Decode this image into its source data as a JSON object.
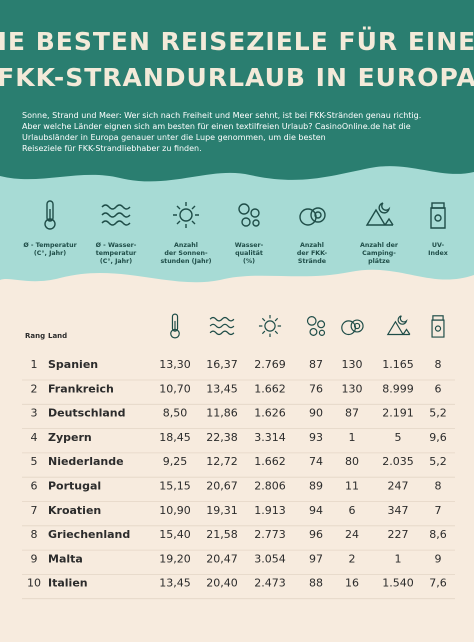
{
  "header": {
    "title": [
      "DIE BESTEN REISEZIELE FÜR EINEN",
      "FKK-STRANDURLAUB IN EUROPA"
    ],
    "description": [
      "Sonne, Strand und Meer: Wer sich nach Freiheit und Meer sehnt, ist bei FKK-Stränden genau richtig.",
      "Aber welche Länder eignen sich am besten für einen textilfreien Urlaub? CasinoOnline.de hat die",
      "Urlaubsländer in Europa genauer unter die Lupe genommen, um die besten",
      "Reiseziele für FKK-Strandliebhaber zu finden."
    ]
  },
  "legend": [
    {
      "lines": [
        "Ø - Temperatur",
        "(C°, Jahr)"
      ]
    },
    {
      "lines": [
        "Ø - Wasser-",
        "temperatur",
        "(C°, Jahr)"
      ]
    },
    {
      "lines": [
        "Anzahl",
        "der Sonnen-",
        "stunden (Jahr)"
      ]
    },
    {
      "lines": [
        "Wasser-",
        "qualität",
        "(%)"
      ]
    },
    {
      "lines": [
        "Anzahl",
        "der FKK-",
        "Strände"
      ]
    },
    {
      "lines": [
        "Anzahl der",
        "Camping-",
        "plätze"
      ]
    },
    {
      "lines": [
        "UV-",
        "Index"
      ]
    }
  ],
  "table": {
    "header": [
      "Rang",
      "Land"
    ],
    "rows": [
      [
        1,
        "Spanien",
        "13,30",
        "16,37",
        "2.769",
        "87",
        "130",
        "1.165",
        "8"
      ],
      [
        2,
        "Frankreich",
        "10,70",
        "13,45",
        "1.662",
        "76",
        "130",
        "8.999",
        "6"
      ],
      [
        3,
        "Deutschland",
        "8,50",
        "11,86",
        "1.626",
        "90",
        "87",
        "2.191",
        "5,2"
      ],
      [
        4,
        "Zypern",
        "18,45",
        "22,38",
        "3.314",
        "93",
        "1",
        "5",
        "9,6"
      ],
      [
        5,
        "Niederlande",
        "9,25",
        "12,72",
        "1.662",
        "74",
        "80",
        "2.035",
        "5,2"
      ],
      [
        6,
        "Portugal",
        "15,15",
        "20,67",
        "2.806",
        "89",
        "11",
        "247",
        "8"
      ],
      [
        7,
        "Kroatien",
        "10,90",
        "19,31",
        "1.913",
        "94",
        "6",
        "347",
        "7"
      ],
      [
        8,
        "Griechenland",
        "15,40",
        "21,58",
        "2.773",
        "96",
        "24",
        "227",
        "8,6"
      ],
      [
        9,
        "Malta",
        "19,20",
        "20,47",
        "3.054",
        "97",
        "2",
        "1",
        "9"
      ],
      [
        10,
        "Italien",
        "13,45",
        "20,40",
        "2.473",
        "88",
        "16",
        "1.540",
        "7,6"
      ]
    ]
  }
}
